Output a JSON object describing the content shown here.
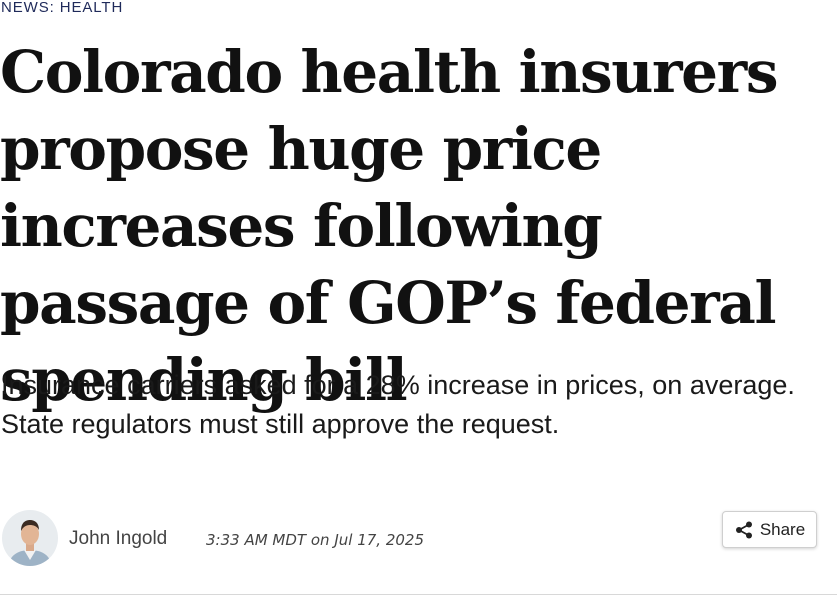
{
  "section": {
    "kicker": "NEWS: HEALTH"
  },
  "article": {
    "headline": "Colorado health insurers propose huge price increases following passage of GOP’s federal spending bill",
    "dek": "Insurance carriers asked for a 28% increase in prices, on average. State regulators must still approve the request."
  },
  "byline": {
    "author": "John Ingold",
    "time": "3:33 AM MDT",
    "on": "on",
    "date": "Jul 17, 2025"
  },
  "share": {
    "label": "Share",
    "icon": "share-icon"
  },
  "colors": {
    "kicker": "#1f2a5a",
    "headline": "#111111",
    "body": "#1a1a1a",
    "meta": "#444444"
  }
}
